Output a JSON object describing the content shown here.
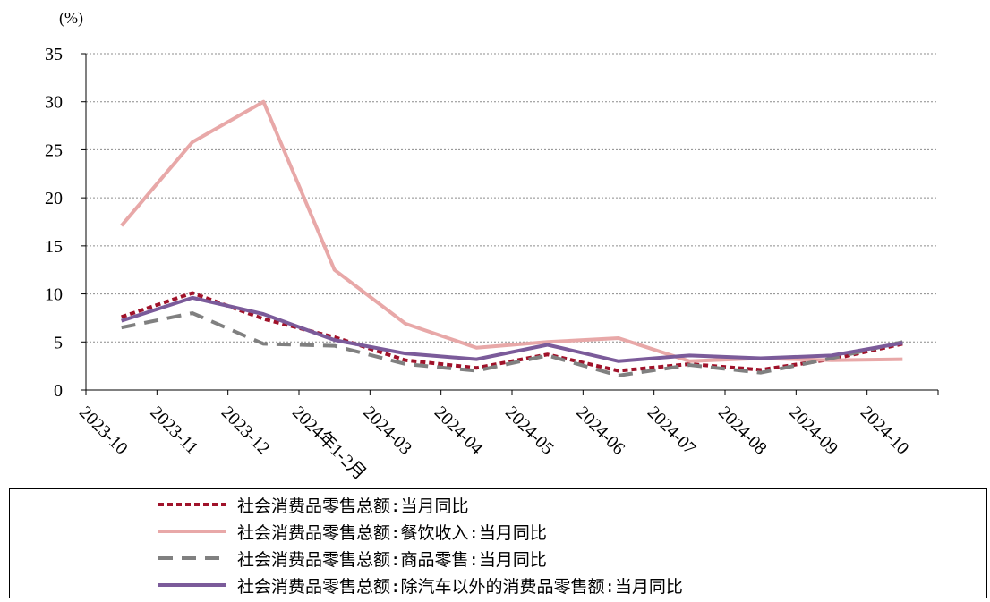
{
  "chart_data": {
    "type": "line",
    "unit_label": "(%)",
    "ylim": [
      0,
      35
    ],
    "yticks": [
      0,
      5,
      10,
      15,
      20,
      25,
      30,
      35
    ],
    "grid": "horizontal-dotted",
    "categories": [
      "2023-10",
      "2023-11",
      "2023-12",
      "2024年1-2月",
      "2024-03",
      "2024-04",
      "2024-05",
      "2024-06",
      "2024-07",
      "2024-08",
      "2024-09",
      "2024-10"
    ],
    "series": [
      {
        "name": "社会消费品零售总额:当月同比",
        "color": "#a0122a",
        "dash": "dotted",
        "values": [
          7.6,
          10.1,
          7.4,
          5.5,
          3.1,
          2.3,
          3.7,
          2.0,
          2.7,
          2.1,
          3.2,
          4.8
        ]
      },
      {
        "name": "社会消费品零售总额:餐饮收入:当月同比",
        "color": "#e8a8a8",
        "dash": "solid",
        "values": [
          17.1,
          25.8,
          30.0,
          12.5,
          6.9,
          4.4,
          5.0,
          5.4,
          3.0,
          3.3,
          3.1,
          3.2
        ]
      },
      {
        "name": "社会消费品零售总额:商品零售:当月同比",
        "color": "#808080",
        "dash": "dashed",
        "values": [
          6.5,
          8.0,
          4.8,
          4.6,
          2.7,
          2.0,
          3.6,
          1.5,
          2.6,
          1.8,
          3.3,
          5.0
        ]
      },
      {
        "name": "社会消费品零售总额:除汽车以外的消费品零售额:当月同比",
        "color": "#7b5b9a",
        "dash": "solid",
        "values": [
          7.2,
          9.6,
          7.9,
          5.2,
          3.8,
          3.2,
          4.7,
          3.0,
          3.6,
          3.3,
          3.6,
          4.9
        ]
      }
    ]
  }
}
